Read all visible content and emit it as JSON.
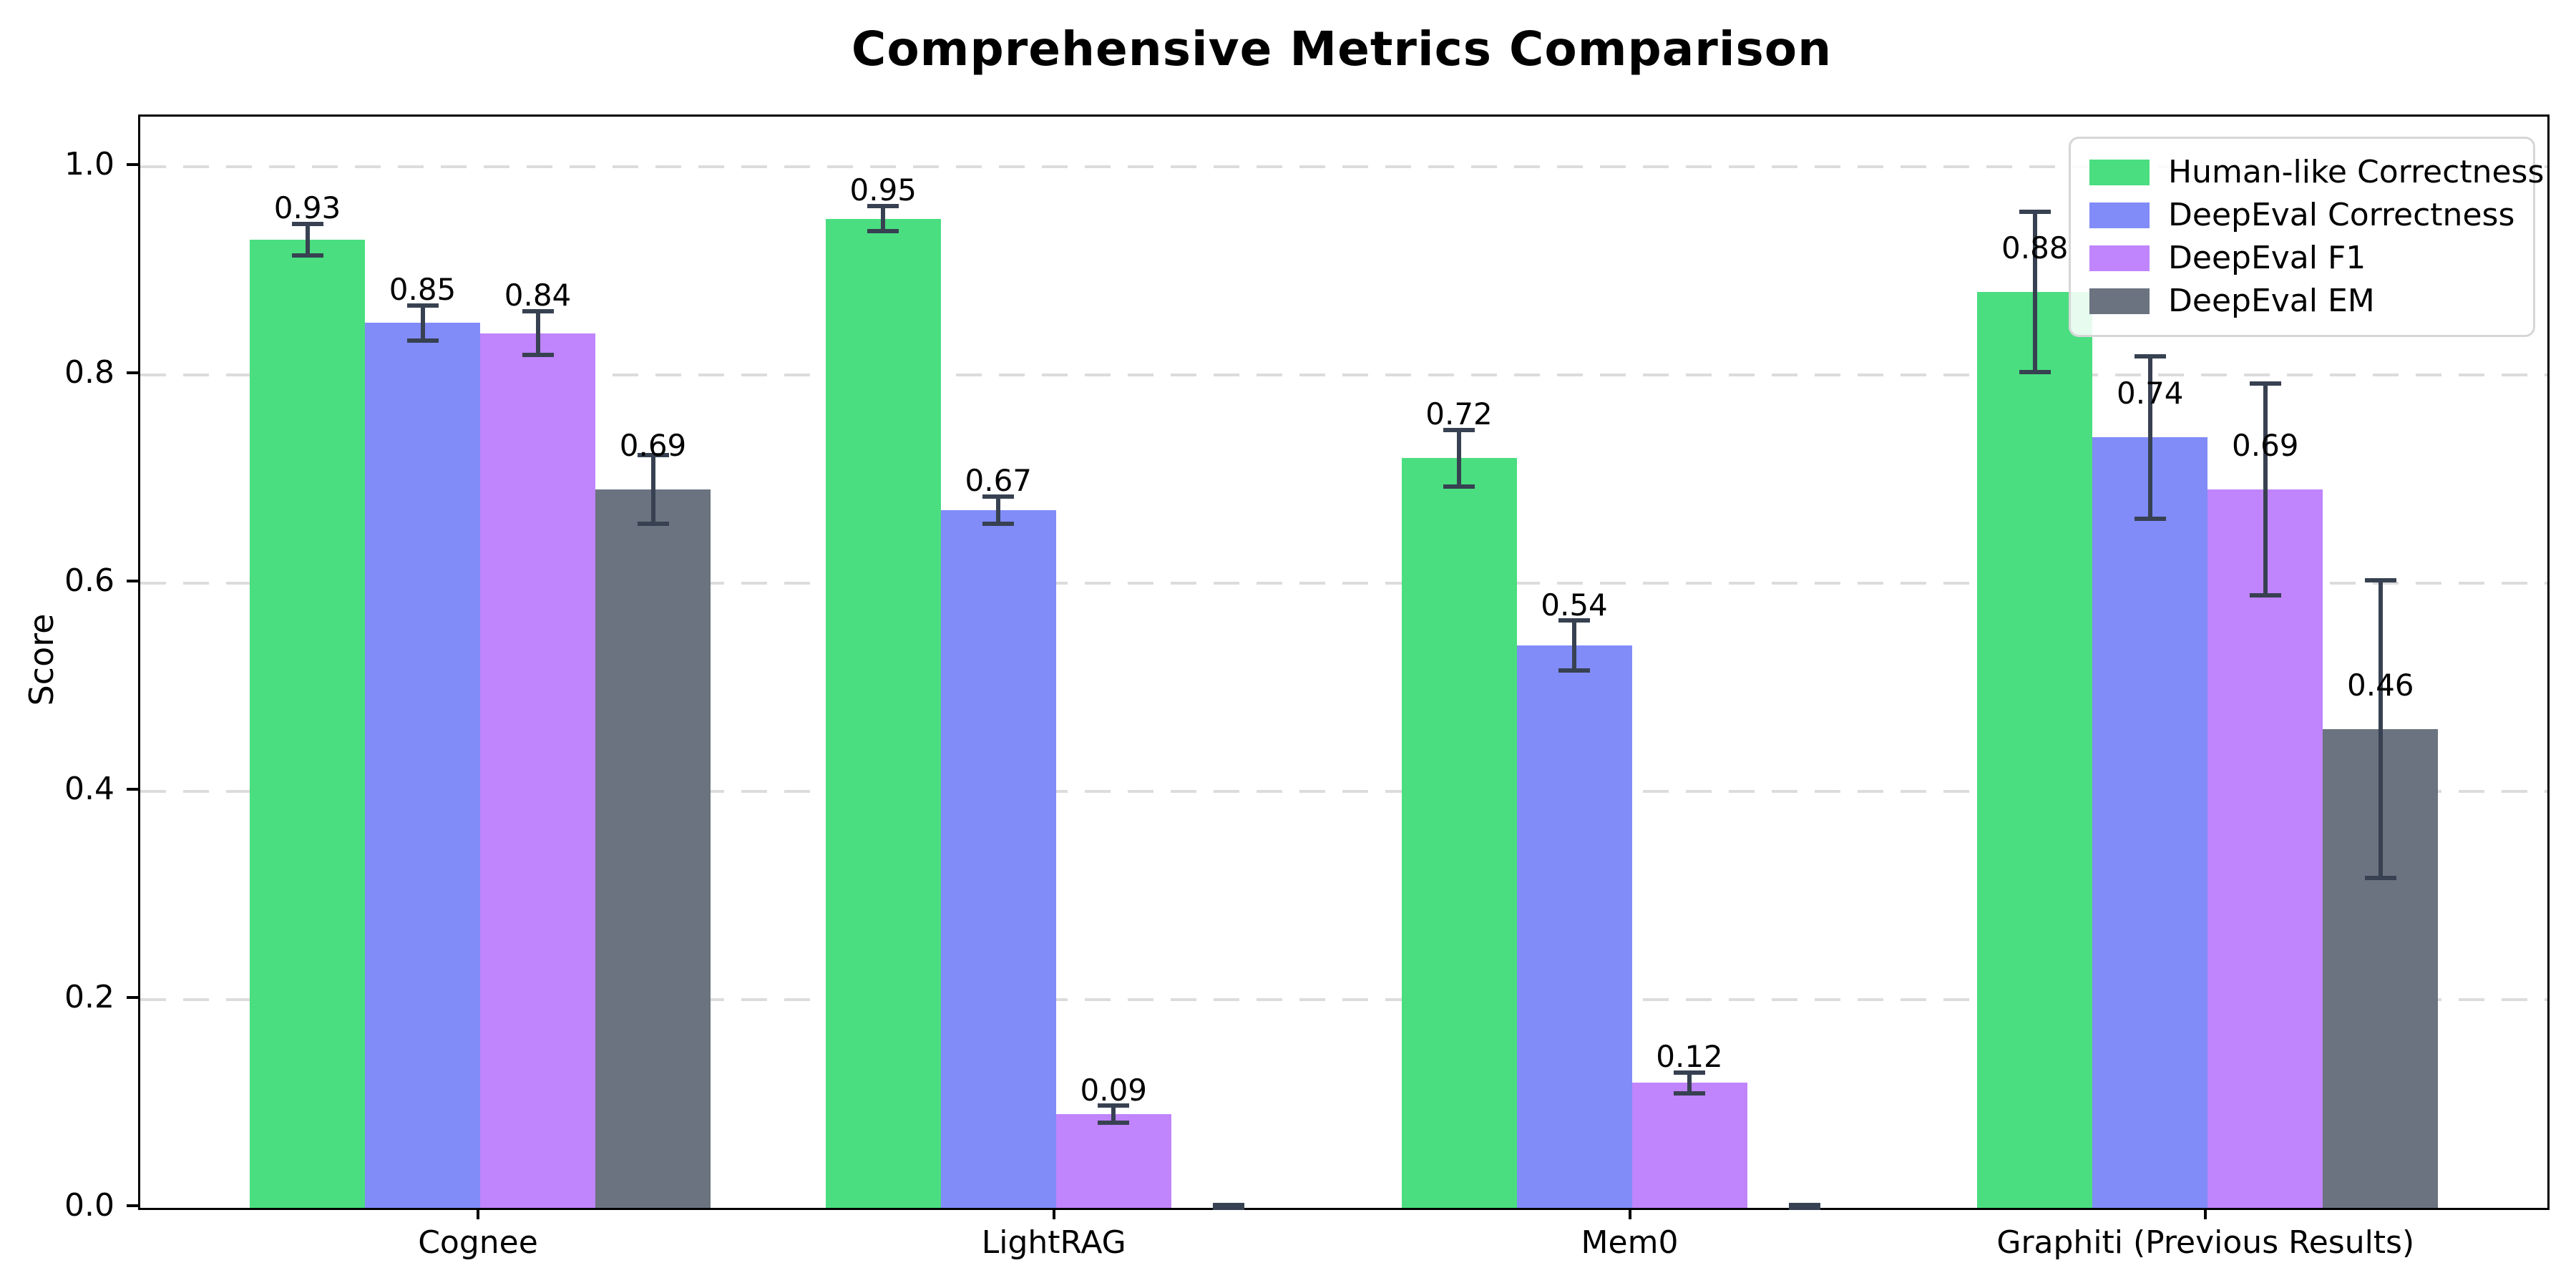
{
  "chart_data": {
    "type": "bar",
    "title": "Comprehensive Metrics Comparison",
    "xlabel": "",
    "ylabel": "Score",
    "ylim": [
      0,
      1.048
    ],
    "yticks": [
      0.0,
      0.2,
      0.4,
      0.6,
      0.8,
      1.0
    ],
    "ytick_labels": [
      "0.0",
      "0.2",
      "0.4",
      "0.6",
      "0.8",
      "1.0"
    ],
    "grid": "horizontal-dashed",
    "grid_color": "#dcdcdc",
    "legend_position": "upper-right",
    "error_bar_color": "#374151",
    "categories": [
      "Cognee",
      "LightRAG",
      "Mem0",
      "Graphiti (Previous Results)"
    ],
    "series": [
      {
        "name": "Human-like Correctness",
        "color": "#4ade80",
        "values": [
          0.93,
          0.95,
          0.72,
          0.88
        ],
        "errors": [
          0.015,
          0.012,
          0.027,
          0.077
        ],
        "labels": [
          "0.93",
          "0.95",
          "0.72",
          "0.88"
        ]
      },
      {
        "name": "DeepEval Correctness",
        "color": "#818cf8",
        "values": [
          0.85,
          0.67,
          0.54,
          0.74
        ],
        "errors": [
          0.017,
          0.013,
          0.024,
          0.078
        ],
        "labels": [
          "0.85",
          "0.67",
          "0.54",
          "0.74"
        ]
      },
      {
        "name": "DeepEval F1",
        "color": "#c084fc",
        "values": [
          0.84,
          0.09,
          0.12,
          0.69
        ],
        "errors": [
          0.021,
          0.008,
          0.01,
          0.102
        ],
        "labels": [
          "0.84",
          "0.09",
          "0.12",
          "0.69"
        ]
      },
      {
        "name": "DeepEval EM",
        "color": "#6b7280",
        "values": [
          0.69,
          0.0,
          0.0,
          0.46
        ],
        "errors": [
          0.033,
          0.003,
          0.003,
          0.143
        ],
        "labels": [
          "0.69",
          "",
          "",
          "0.46"
        ]
      }
    ]
  }
}
